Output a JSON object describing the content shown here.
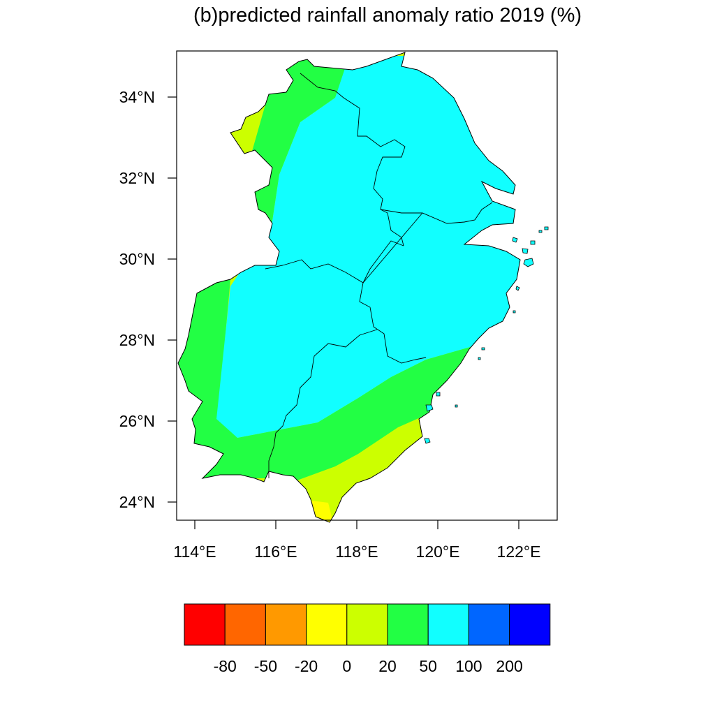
{
  "title": "(b)predicted rainfall anomaly ratio 2019 (%)",
  "axes": {
    "x_ticks": [
      "114°E",
      "116°E",
      "118°E",
      "120°E",
      "122°E"
    ],
    "y_ticks": [
      "34°N",
      "32°N",
      "30°N",
      "28°N",
      "26°N",
      "24°N"
    ],
    "lon_range": [
      113.6,
      122.9
    ],
    "lat_range": [
      23.5,
      35.1
    ]
  },
  "colorbar": {
    "colors": [
      "#ff0000",
      "#ff6600",
      "#ff9900",
      "#ffff00",
      "#ccff00",
      "#22ff44",
      "#11ffff",
      "#0066ff",
      "#0000ff"
    ],
    "labels": [
      "-80",
      "-50",
      "-20",
      "0",
      "20",
      "50",
      "100",
      "200"
    ]
  },
  "fill_colors": {
    "yellow": "#ffff00",
    "yellow_green": "#ccff00",
    "green": "#22ff44",
    "cyan": "#11ffff"
  }
}
